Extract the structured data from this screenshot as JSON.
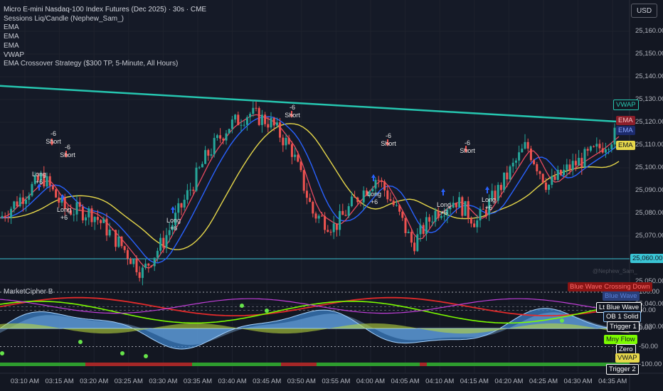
{
  "legend": {
    "title": "Micro E-mini Nasdaq-100 Index Futures (Dec 2025) · 30s · CME",
    "indicators": [
      "Sessions Liq/Candle (Nephew_Sam_)",
      "EMA",
      "EMA",
      "EMA",
      "VWAP",
      "EMA Crossover Strategy ($300 TP, 5-Minute, All Hours)"
    ]
  },
  "currency": "USD",
  "price_axis": [
    "25,160.00",
    "25,150.00",
    "25,140.00",
    "25,130.00",
    "25,120.00",
    "25,110.00",
    "25,100.00",
    "25,090.00",
    "25,080.00",
    "25,070.00",
    "25,050.00",
    "25,040.00",
    "25,030.00"
  ],
  "current_price": "25,060.00",
  "price_tags": {
    "vwap": "VWAP",
    "ema1": "EMA",
    "ema2": "EMA",
    "ema3": "EMA"
  },
  "trade_labels": {
    "long": "Long",
    "short": "Short",
    "long_qty": "+6",
    "short_qty": "-6"
  },
  "oscillator": {
    "title": "MarketCipher B",
    "axis": [
      "100.00",
      "50.00",
      "0.00",
      "-50.00",
      "-100.00"
    ],
    "tags": [
      "Blue Wave Crossing Down",
      "Blue Wave",
      "Lt Blue Wave",
      "OB 1 Solid",
      "Trigger 1",
      "Mny Flow",
      "Zero",
      "VWAP",
      "Trigger 2"
    ]
  },
  "time_axis": [
    "03:10 AM",
    "03:15 AM",
    "03:20 AM",
    "03:25 AM",
    "03:30 AM",
    "03:35 AM",
    "03:40 AM",
    "03:45 AM",
    "03:50 AM",
    "03:55 AM",
    "04:00 AM",
    "04:05 AM",
    "04:10 AM",
    "04:15 AM",
    "04:20 AM",
    "04:25 AM",
    "04:30 AM",
    "04:35 AM"
  ],
  "watermark": "@Nephew_Sam_",
  "colors": {
    "background": "#131722",
    "bull": "#26a69a",
    "bear": "#ef5350",
    "vwap": "#26c6b0",
    "ema_red": "#e84a5f",
    "ema_blue": "#2962ff",
    "ema_yellow": "#e6d74a",
    "current_price": "#3ac4d4"
  }
}
